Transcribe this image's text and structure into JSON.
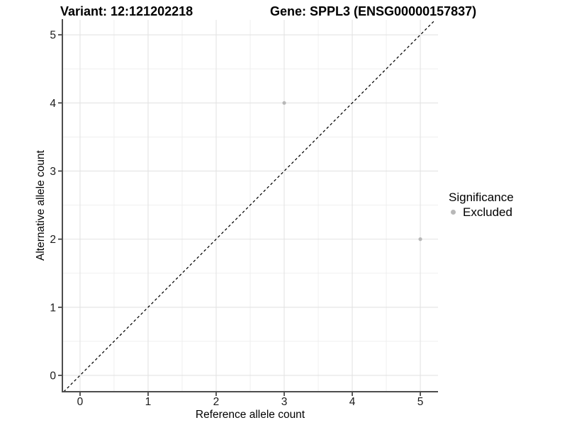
{
  "chart_data": {
    "type": "scatter",
    "title_left": "Variant: 12:121202218",
    "title_right": "Gene: SPPL3 (ENSG00000157837)",
    "xlabel": "Reference allele count",
    "ylabel": "Alternative allele count",
    "x_ticks": [
      0,
      1,
      2,
      3,
      4,
      5
    ],
    "y_ticks": [
      0,
      1,
      2,
      3,
      4,
      5
    ],
    "x_minor_ticks": [
      0.5,
      1.5,
      2.5,
      3.5,
      4.5
    ],
    "y_minor_ticks": [
      0.5,
      1.5,
      2.5,
      3.5,
      4.5
    ],
    "xlim": [
      -0.26,
      5.26
    ],
    "ylim": [
      -0.24,
      5.22
    ],
    "grid": true,
    "legend": {
      "title": "Significance",
      "position": "right",
      "items": [
        {
          "label": "Excluded",
          "color": "#b8b8b8"
        }
      ]
    },
    "series": [
      {
        "name": "Excluded",
        "color": "#b8b8b8",
        "points": [
          {
            "x": 3,
            "y": 4
          },
          {
            "x": 5,
            "y": 2
          }
        ]
      }
    ],
    "reference_line": {
      "type": "identity",
      "slope": 1,
      "intercept": 0,
      "style": "dashed",
      "color": "#000000"
    },
    "colors": {
      "background": "#ffffff",
      "axis_line": "#4d4d4d",
      "tick": "#333333",
      "grid_major": "#e3e3e3",
      "grid_minor": "#eeeeee",
      "tick_label": "#1a1a1a",
      "point": "#b8b8b8"
    }
  }
}
